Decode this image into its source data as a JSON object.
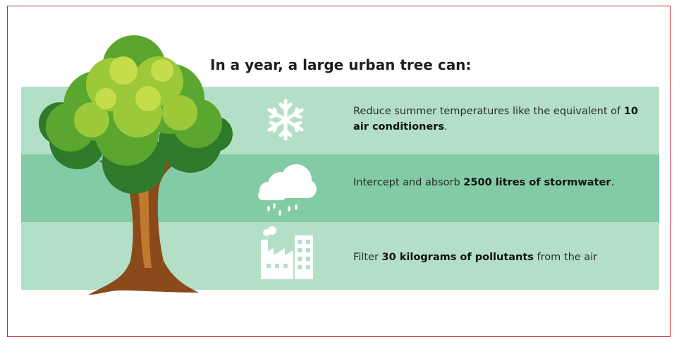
{
  "heading": "In a year, a large urban tree can:",
  "items": [
    {
      "text": "Reduce summer temperatures like the equivalent of ",
      "bold": "10 air conditioners",
      "after": "."
    },
    {
      "text": "Intercept and absorb ",
      "bold": "2500 litres of stormwater",
      "after": "."
    },
    {
      "text": "Filter ",
      "bold": "30 kilograms of pollutants",
      "after": " from the air"
    }
  ]
}
